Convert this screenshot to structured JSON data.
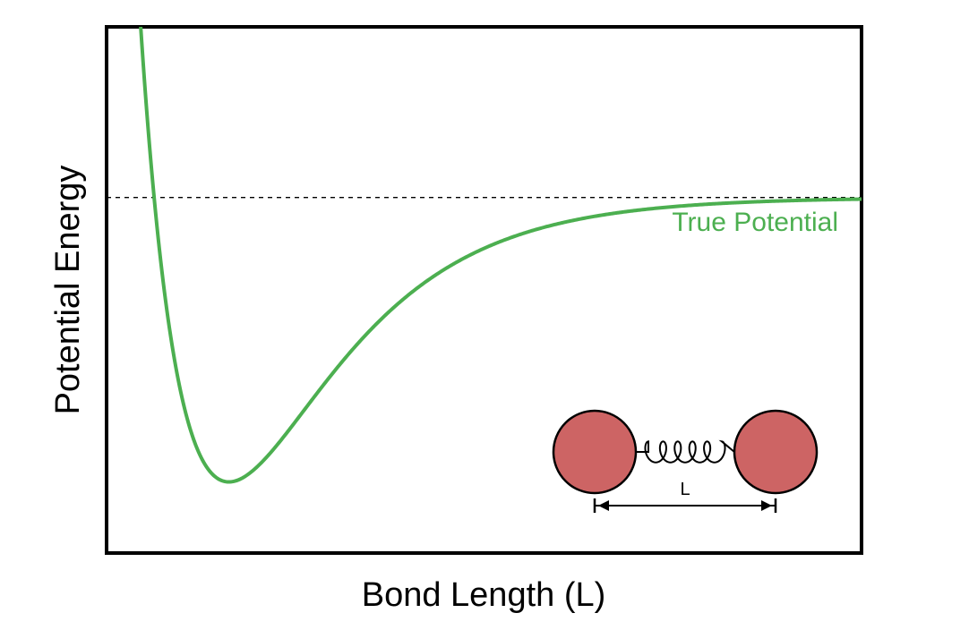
{
  "chart_data": {
    "type": "line",
    "title": "",
    "xlabel": "Bond Length (L)",
    "ylabel": "Potential Energy",
    "xlim": [
      0,
      1
    ],
    "ylim": [
      -1.25,
      0.6
    ],
    "grid": false,
    "x_ticks": [],
    "y_ticks": [],
    "series": [
      {
        "name": "True Potential",
        "color": "#4caf50",
        "model": "morse",
        "equilibrium_x": 0.162,
        "well_depth": 1.0,
        "width_param": 7.0,
        "asymptote": 0
      }
    ],
    "reference_lines": [
      {
        "axis": "y",
        "value": 0,
        "style": "dashed",
        "color": "#000000"
      }
    ],
    "inset": {
      "description_icon": "diatomic-spring-icon",
      "atom_color": "#cd6464",
      "label": "L"
    }
  }
}
